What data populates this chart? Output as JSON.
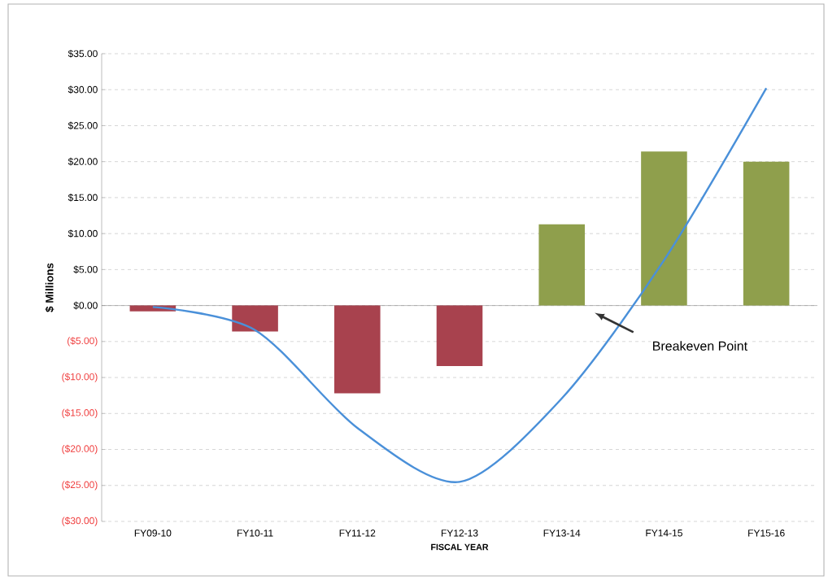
{
  "chart_data": {
    "type": "bar",
    "xlabel": "FISCAL YEAR",
    "ylabel": "$ Millions",
    "categories": [
      "FY09-10",
      "FY10-11",
      "FY11-12",
      "FY12-13",
      "FY13-14",
      "FY14-15",
      "FY15-16"
    ],
    "series": [
      {
        "values": [
          -0.8,
          -3.6,
          -12.2,
          -8.4,
          11.3,
          21.4,
          20.0
        ],
        "colors": [
          "#a8424e",
          "#a8424e",
          "#a8424e",
          "#a8424e",
          "#8f9f4c",
          "#8f9f4c",
          "#8f9f4c"
        ]
      },
      {
        "type": "line",
        "color": "#4a90d9",
        "values": [
          -0.2,
          -3.4,
          -17.0,
          -24.5,
          -12.9,
          6.3,
          30.2
        ]
      }
    ],
    "ylim": [
      -30,
      35
    ],
    "yticks": [
      {
        "value": -30,
        "label": "($30.00)"
      },
      {
        "value": -25,
        "label": "($25.00)"
      },
      {
        "value": -20,
        "label": "($20.00)"
      },
      {
        "value": -15,
        "label": "($15.00)"
      },
      {
        "value": -10,
        "label": "($10.00)"
      },
      {
        "value": -5,
        "label": "($5.00)"
      },
      {
        "value": 0,
        "label": "$0.00"
      },
      {
        "value": 5,
        "label": "$5.00"
      },
      {
        "value": 10,
        "label": "$10.00"
      },
      {
        "value": 15,
        "label": "$15.00"
      },
      {
        "value": 20,
        "label": "$20.00"
      },
      {
        "value": 25,
        "label": "$25.00"
      },
      {
        "value": 30,
        "label": "$30.00"
      },
      {
        "value": 35,
        "label": "$35.00"
      }
    ],
    "grid": "y",
    "annotations": [
      "Breakeven Point"
    ]
  }
}
